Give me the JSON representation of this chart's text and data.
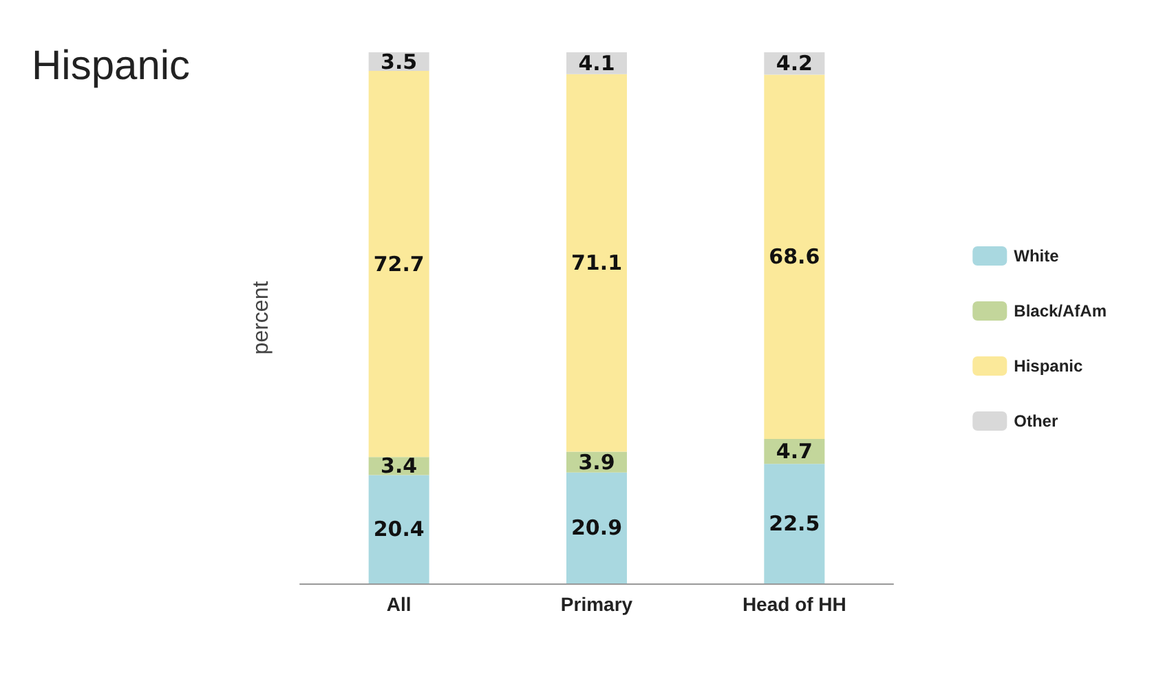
{
  "chart_data": {
    "type": "bar",
    "title": "Hispanic",
    "ylabel": "percent",
    "categories": [
      "All",
      "Primary",
      "Head of HH"
    ],
    "stacked": true,
    "data_labels": true,
    "legend": "right",
    "tick_labels": "x",
    "series": [
      {
        "name": "White",
        "color": "#a9d8e0",
        "values": [
          20.4,
          20.9,
          22.5
        ]
      },
      {
        "name": "Black/AfAm",
        "color": "#c3d69b",
        "values": [
          3.4,
          3.9,
          4.7
        ]
      },
      {
        "name": "Hispanic",
        "color": "#fbe99a",
        "values": [
          72.7,
          71.1,
          68.6
        ]
      },
      {
        "name": "Other",
        "color": "#d9d9d9",
        "values": [
          3.5,
          4.1,
          4.2
        ]
      }
    ]
  }
}
